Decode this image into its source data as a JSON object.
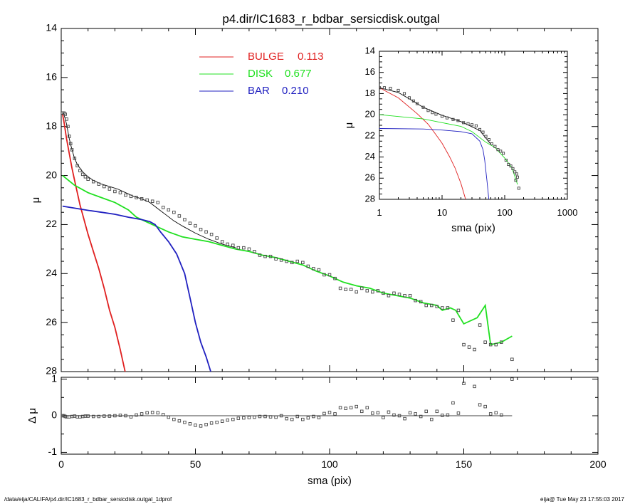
{
  "chart_data": [
    {
      "id": "main",
      "type": "line",
      "title": "p4.dir/IC1683_r_bdbar_sersicdisk.outgal",
      "xlabel": "",
      "ylabel": "μ",
      "xlim": [
        0,
        200
      ],
      "ylim": [
        28,
        14
      ],
      "xticks": [
        "0",
        "50",
        "100",
        "150",
        "200"
      ],
      "yticks": [
        "14",
        "16",
        "18",
        "20",
        "22",
        "24",
        "26",
        "28"
      ],
      "legend_position": "top",
      "legend": [
        {
          "name": "BULGE",
          "value": "0.113",
          "color": "#e02020"
        },
        {
          "name": "DISK",
          "value": "0.677",
          "color": "#20e020"
        },
        {
          "name": "BAR",
          "value": "0.210",
          "color": "#2020c0"
        }
      ],
      "series": [
        {
          "name": "BULGE",
          "color": "#e02020",
          "x": [
            0.5,
            1,
            2,
            3,
            4,
            5,
            6,
            7,
            8,
            9,
            10,
            12,
            14,
            16,
            18,
            20,
            22,
            24
          ],
          "y": [
            17.5,
            17.8,
            18.5,
            19.1,
            19.7,
            20.2,
            20.7,
            21.2,
            21.6,
            22.0,
            22.4,
            23.1,
            23.8,
            24.6,
            25.5,
            26.2,
            27.1,
            28.1
          ]
        },
        {
          "name": "DISK",
          "color": "#20e020",
          "x": [
            0.5,
            5,
            10,
            15,
            20,
            25,
            28,
            32,
            36,
            40,
            45,
            50,
            55,
            60,
            65,
            70,
            75,
            80,
            85,
            90,
            95,
            100,
            105,
            110,
            115,
            120,
            125,
            130,
            135,
            140,
            142,
            145,
            147,
            150,
            155,
            158,
            160,
            164,
            168
          ],
          "y": [
            20.0,
            20.4,
            20.7,
            20.9,
            21.1,
            21.4,
            21.7,
            21.9,
            22.1,
            22.3,
            22.5,
            22.6,
            22.7,
            22.85,
            23.0,
            23.1,
            23.25,
            23.35,
            23.5,
            23.65,
            23.9,
            24.1,
            24.35,
            24.5,
            24.6,
            24.8,
            24.9,
            25.0,
            25.2,
            25.3,
            25.5,
            25.4,
            25.5,
            26.05,
            25.8,
            25.3,
            26.9,
            26.8,
            26.55
          ]
        },
        {
          "name": "BAR",
          "color": "#2020c0",
          "x": [
            0.5,
            5,
            10,
            15,
            20,
            25,
            30,
            33,
            35,
            37,
            40,
            43,
            46,
            48,
            50,
            52,
            54,
            56
          ],
          "y": [
            21.25,
            21.33,
            21.42,
            21.5,
            21.58,
            21.7,
            21.8,
            21.88,
            22.0,
            22.3,
            22.7,
            23.2,
            24.0,
            25.0,
            26.0,
            26.8,
            27.4,
            28.1
          ]
        },
        {
          "name": "model",
          "color": "#000000",
          "x": [
            0.5,
            1,
            2,
            3,
            4,
            5,
            6,
            8,
            10,
            12,
            15,
            18,
            21,
            24,
            27,
            30,
            33,
            36,
            39,
            42,
            45,
            50,
            55,
            60,
            65
          ],
          "y": [
            17.45,
            17.5,
            17.9,
            18.5,
            18.95,
            19.3,
            19.55,
            19.85,
            20.05,
            20.2,
            20.35,
            20.45,
            20.55,
            20.7,
            20.85,
            20.95,
            21.1,
            21.35,
            21.6,
            21.85,
            22.05,
            22.35,
            22.6,
            22.8,
            22.95
          ]
        },
        {
          "name": "data",
          "color": "#000000",
          "marker": "square",
          "x": [
            0.5,
            1,
            1.5,
            2,
            2.5,
            3,
            3.5,
            4,
            5,
            6,
            7,
            8,
            9,
            10,
            12,
            14,
            16,
            18,
            20,
            22,
            24,
            26,
            28,
            30,
            32,
            34,
            36,
            38,
            40,
            42,
            44,
            46,
            48,
            50,
            52,
            54,
            56,
            58,
            60,
            62,
            64,
            66,
            68,
            70,
            72,
            74,
            76,
            78,
            80,
            82,
            84,
            86,
            88,
            90,
            92,
            94,
            96,
            98,
            100,
            102,
            104,
            106,
            108,
            110,
            112,
            114,
            116,
            118,
            120,
            122,
            124,
            126,
            128,
            130,
            132,
            134,
            136,
            138,
            140,
            142,
            144,
            146,
            148,
            150,
            152,
            154,
            156,
            158,
            160,
            162,
            164,
            168
          ],
          "y": [
            17.45,
            17.45,
            17.5,
            17.7,
            18.0,
            18.4,
            18.7,
            18.95,
            19.3,
            19.6,
            19.8,
            19.95,
            20.05,
            20.15,
            20.25,
            20.35,
            20.45,
            20.55,
            20.65,
            20.7,
            20.8,
            20.85,
            20.9,
            20.95,
            21.0,
            21.05,
            21.1,
            21.3,
            21.4,
            21.5,
            21.65,
            21.8,
            21.95,
            22.05,
            22.2,
            22.3,
            22.4,
            22.55,
            22.7,
            22.8,
            22.85,
            22.95,
            22.95,
            23.0,
            23.1,
            23.25,
            23.3,
            23.3,
            23.4,
            23.45,
            23.5,
            23.55,
            23.5,
            23.55,
            23.7,
            23.8,
            23.85,
            24.05,
            24.05,
            24.2,
            24.6,
            24.65,
            24.65,
            24.75,
            24.6,
            24.7,
            24.75,
            24.7,
            24.8,
            24.9,
            24.8,
            24.85,
            24.9,
            24.9,
            25.1,
            25.15,
            25.3,
            25.3,
            25.35,
            25.4,
            25.4,
            25.9,
            25.5,
            26.9,
            27.0,
            27.1,
            26.1,
            26.8,
            26.9,
            26.9,
            26.8,
            27.5
          ]
        }
      ]
    },
    {
      "id": "residual",
      "type": "scatter",
      "xlabel": "sma (pix)",
      "ylabel": "Δ μ",
      "xlim": [
        0,
        200
      ],
      "ylim": [
        -1.05,
        1.05
      ],
      "xticks": [
        "0",
        "50",
        "100",
        "150",
        "200"
      ],
      "yticks": [
        "-1",
        "0",
        "1"
      ],
      "zero_line": true,
      "series": [
        {
          "name": "residual",
          "marker": "square",
          "x": [
            0.5,
            1,
            1.5,
            2,
            3,
            4,
            5,
            6,
            7,
            8,
            9,
            10,
            12,
            14,
            16,
            18,
            20,
            22,
            24,
            26,
            28,
            30,
            32,
            34,
            36,
            38,
            40,
            42,
            44,
            46,
            48,
            50,
            52,
            54,
            56,
            58,
            60,
            62,
            64,
            66,
            68,
            70,
            72,
            74,
            76,
            78,
            80,
            82,
            84,
            86,
            88,
            90,
            92,
            94,
            96,
            98,
            100,
            102,
            104,
            106,
            108,
            110,
            112,
            114,
            116,
            118,
            120,
            122,
            124,
            126,
            128,
            130,
            132,
            134,
            136,
            138,
            140,
            142,
            144,
            146,
            148,
            150,
            152,
            154,
            156,
            158,
            160,
            162,
            164,
            168
          ],
          "y": [
            0.0,
            0.0,
            -0.02,
            -0.03,
            -0.03,
            -0.02,
            -0.01,
            -0.03,
            -0.03,
            -0.02,
            -0.01,
            -0.01,
            -0.02,
            -0.02,
            -0.01,
            -0.01,
            0.0,
            0.01,
            0.0,
            -0.03,
            0.02,
            0.05,
            0.08,
            0.09,
            0.08,
            0.03,
            -0.04,
            -0.1,
            -0.14,
            -0.18,
            -0.22,
            -0.26,
            -0.28,
            -0.24,
            -0.2,
            -0.18,
            -0.15,
            -0.12,
            -0.1,
            -0.07,
            -0.06,
            -0.05,
            -0.04,
            -0.02,
            -0.02,
            -0.03,
            -0.04,
            0.0,
            -0.08,
            -0.1,
            -0.02,
            -0.1,
            -0.06,
            -0.02,
            -0.05,
            0.06,
            0.09,
            0.05,
            0.22,
            0.2,
            0.22,
            0.25,
            0.12,
            0.22,
            0.07,
            0.08,
            -0.05,
            0.1,
            0.02,
            0.0,
            -0.08,
            0.08,
            0.05,
            -0.02,
            0.12,
            -0.1,
            0.12,
            0.01,
            0.02,
            0.35,
            0.07,
            0.88,
            1.08,
            0.8,
            0.3,
            0.25,
            0.05,
            0.08,
            0.02,
            1.0
          ]
        }
      ]
    },
    {
      "id": "inset",
      "type": "line",
      "xlabel": "sma (pix)",
      "ylabel": "μ",
      "xscale": "log",
      "xlim": [
        1,
        1000
      ],
      "ylim": [
        28,
        14
      ],
      "xticks": [
        "1",
        "10",
        "100",
        "1000"
      ],
      "yticks": [
        "14",
        "16",
        "18",
        "20",
        "22",
        "24",
        "26",
        "28"
      ],
      "series": [
        {
          "name": "BULGE",
          "color": "#e02020",
          "x": [
            1,
            2,
            4,
            6,
            8,
            10,
            13,
            16,
            20,
            24
          ],
          "y": [
            17.45,
            18.4,
            19.9,
            20.9,
            21.9,
            22.7,
            23.9,
            25.0,
            26.5,
            28.1
          ]
        },
        {
          "name": "DISK",
          "color": "#20e020",
          "x": [
            1,
            5,
            10,
            20,
            30,
            50,
            70,
            100,
            130,
            160
          ],
          "y": [
            20.0,
            20.4,
            20.75,
            21.1,
            21.6,
            22.6,
            23.1,
            24.1,
            25.0,
            26.6
          ]
        },
        {
          "name": "BAR",
          "color": "#2020c0",
          "x": [
            1,
            5,
            10,
            20,
            30,
            40,
            45,
            48,
            50,
            52,
            54,
            56
          ],
          "y": [
            21.3,
            21.35,
            21.45,
            21.6,
            21.8,
            22.5,
            23.3,
            24.3,
            25.3,
            26.2,
            27.2,
            28.1
          ]
        },
        {
          "name": "model",
          "color": "#000000",
          "x": [
            1,
            2,
            3,
            5,
            10,
            20,
            40,
            60
          ],
          "y": [
            17.45,
            17.9,
            18.5,
            19.3,
            20.05,
            20.65,
            21.5,
            22.8
          ]
        },
        {
          "name": "data",
          "color": "#000000",
          "marker": "square",
          "x": [
            1,
            1.2,
            1.5,
            2,
            2.5,
            3,
            3.5,
            4,
            5,
            6,
            7,
            8,
            10,
            12,
            15,
            18,
            22,
            26,
            30,
            35,
            40,
            45,
            50,
            56,
            62,
            70,
            78,
            86,
            95,
            105,
            115,
            125,
            135,
            145,
            150,
            155,
            160,
            168
          ],
          "y": [
            17.45,
            17.45,
            17.5,
            17.7,
            18.0,
            18.4,
            18.7,
            18.95,
            19.3,
            19.6,
            19.8,
            19.95,
            20.15,
            20.3,
            20.45,
            20.55,
            20.75,
            20.85,
            20.95,
            21.05,
            21.4,
            21.65,
            22.05,
            22.35,
            22.75,
            23.0,
            23.3,
            23.45,
            23.65,
            24.3,
            24.7,
            24.85,
            25.1,
            25.4,
            26.2,
            25.6,
            25.9,
            26.95
          ]
        }
      ]
    }
  ],
  "footer": {
    "path": "/data/eija/CALIFA/p4.dir/IC1683_r_bdbar_sersicdisk.outgal_1dprof",
    "stamp": "eija@  Tue May 23 17:55:03 2017"
  }
}
